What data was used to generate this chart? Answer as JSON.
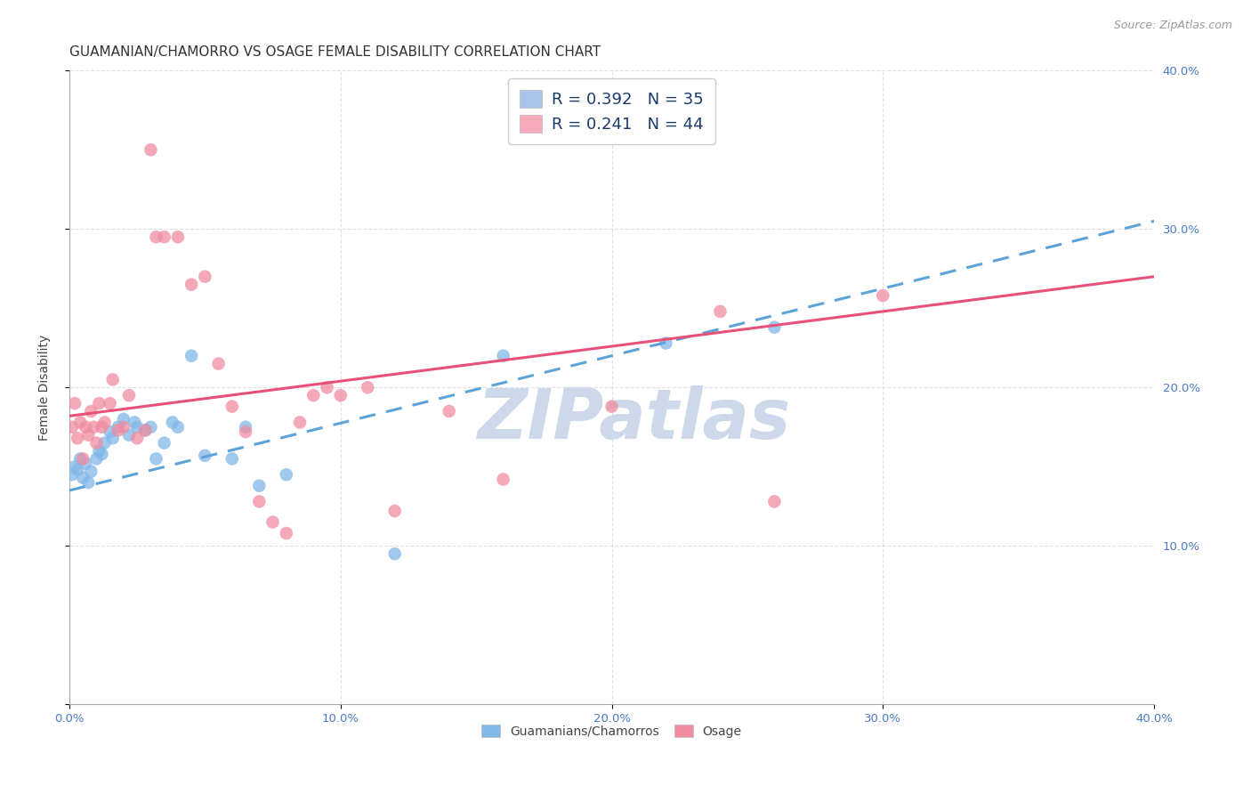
{
  "title": "GUAMANIAN/CHAMORRO VS OSAGE FEMALE DISABILITY CORRELATION CHART",
  "source": "Source: ZipAtlas.com",
  "ylabel": "Female Disability",
  "xlim": [
    0.0,
    0.4
  ],
  "ylim": [
    0.0,
    0.4
  ],
  "xticks": [
    0.0,
    0.1,
    0.2,
    0.3,
    0.4
  ],
  "yticks_right": [
    0.1,
    0.2,
    0.3,
    0.4
  ],
  "xtick_labels": [
    "0.0%",
    "10.0%",
    "20.0%",
    "30.0%",
    "40.0%"
  ],
  "ytick_labels_right": [
    "10.0%",
    "20.0%",
    "30.0%",
    "40.0%"
  ],
  "legend_entries": [
    {
      "label": "R = 0.392   N = 35",
      "color": "#aac4e8"
    },
    {
      "label": "R = 0.241   N = 44",
      "color": "#f7aabc"
    }
  ],
  "series_blue": {
    "name": "Guamanians/Chamorros",
    "color": "#82b8e8",
    "x": [
      0.001,
      0.002,
      0.003,
      0.004,
      0.005,
      0.006,
      0.007,
      0.008,
      0.01,
      0.011,
      0.012,
      0.013,
      0.015,
      0.016,
      0.018,
      0.02,
      0.022,
      0.024,
      0.025,
      0.028,
      0.03,
      0.032,
      0.035,
      0.038,
      0.04,
      0.045,
      0.05,
      0.06,
      0.065,
      0.07,
      0.08,
      0.12,
      0.16,
      0.22,
      0.26
    ],
    "y": [
      0.145,
      0.15,
      0.148,
      0.155,
      0.143,
      0.152,
      0.14,
      0.147,
      0.155,
      0.16,
      0.158,
      0.165,
      0.172,
      0.168,
      0.175,
      0.18,
      0.17,
      0.178,
      0.175,
      0.173,
      0.175,
      0.155,
      0.165,
      0.178,
      0.175,
      0.22,
      0.157,
      0.155,
      0.175,
      0.138,
      0.145,
      0.095,
      0.22,
      0.228,
      0.238
    ]
  },
  "series_pink": {
    "name": "Osage",
    "color": "#f08ca0",
    "x": [
      0.001,
      0.002,
      0.003,
      0.004,
      0.005,
      0.006,
      0.007,
      0.008,
      0.009,
      0.01,
      0.011,
      0.012,
      0.013,
      0.015,
      0.016,
      0.018,
      0.02,
      0.022,
      0.025,
      0.028,
      0.03,
      0.032,
      0.035,
      0.04,
      0.045,
      0.05,
      0.055,
      0.06,
      0.065,
      0.07,
      0.075,
      0.08,
      0.085,
      0.09,
      0.095,
      0.1,
      0.11,
      0.12,
      0.14,
      0.16,
      0.2,
      0.24,
      0.26,
      0.3
    ],
    "y": [
      0.175,
      0.19,
      0.168,
      0.178,
      0.155,
      0.175,
      0.17,
      0.185,
      0.175,
      0.165,
      0.19,
      0.175,
      0.178,
      0.19,
      0.205,
      0.173,
      0.175,
      0.195,
      0.168,
      0.173,
      0.35,
      0.295,
      0.295,
      0.295,
      0.265,
      0.27,
      0.215,
      0.188,
      0.172,
      0.128,
      0.115,
      0.108,
      0.178,
      0.195,
      0.2,
      0.195,
      0.2,
      0.122,
      0.185,
      0.142,
      0.188,
      0.248,
      0.128,
      0.258
    ]
  },
  "blue_line": {
    "x_start": 0.0,
    "y_start": 0.135,
    "x_end": 0.4,
    "y_end": 0.305,
    "color": "#5ba3d9",
    "style": "--",
    "linewidth": 2.2
  },
  "pink_line": {
    "x_start": 0.0,
    "y_start": 0.182,
    "x_end": 0.4,
    "y_end": 0.27,
    "color": "#e8507a",
    "style": "-",
    "linewidth": 2.2
  },
  "background_color": "#ffffff",
  "grid_color": "#cccccc",
  "title_fontsize": 11,
  "axis_label_fontsize": 10,
  "tick_fontsize": 9.5,
  "legend_fontsize": 13,
  "watermark_text": "ZIPatlas",
  "watermark_color": "#cdd8ea",
  "watermark_fontsize": 56
}
